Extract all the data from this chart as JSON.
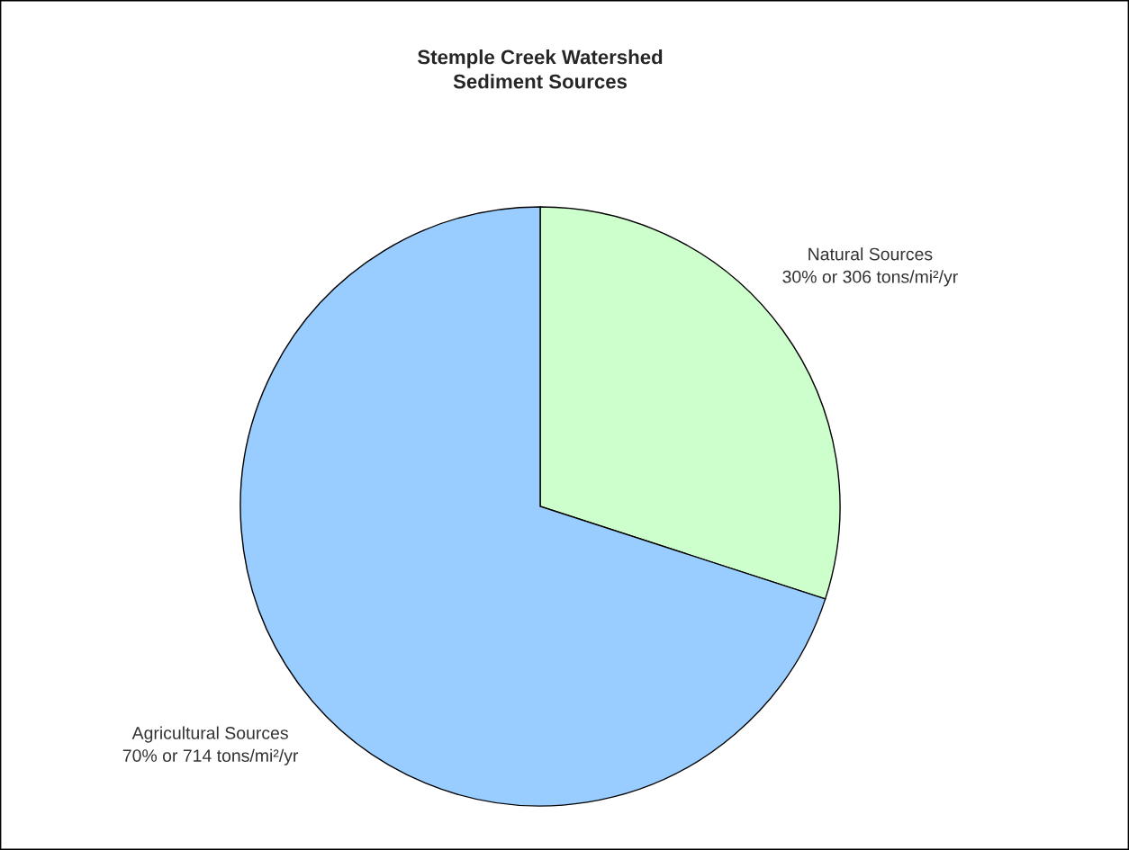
{
  "chart_data": {
    "type": "pie",
    "title": "Stemple Creek Watershed\nSediment Sources",
    "categories": [
      "Natural Sources",
      "Agricultural Sources"
    ],
    "values": [
      306,
      714
    ],
    "value_labels": [
      "30% or 306 tons/mi²/yr",
      "70% or 714 tons/mi²/yr"
    ],
    "colors": [
      "#ccffcc",
      "#99ccff"
    ]
  }
}
